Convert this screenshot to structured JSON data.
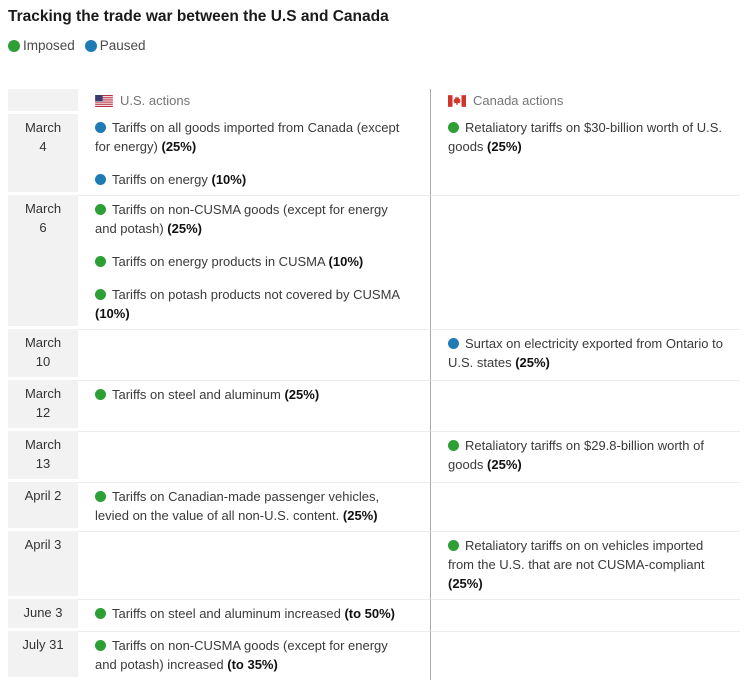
{
  "title": "Tracking the trade war between the U.S and Canada",
  "legend": {
    "items": [
      {
        "label": "Imposed",
        "status": "imposed"
      },
      {
        "label": "Paused",
        "status": "paused"
      }
    ]
  },
  "colors": {
    "imposed": "#2e9e36",
    "paused": "#1f7bb4",
    "us_flag_red": "#b22234",
    "us_flag_blue": "#3c3b6e",
    "canada_flag_red": "#d0342c",
    "date_cell_bg": "#f2f2f2",
    "column_divider": "#a9a9a9",
    "row_separator": "#ececec"
  },
  "chart_data": {
    "type": "table",
    "title": "Tracking the trade war between the U.S and Canada",
    "legend_entries": [
      "Imposed",
      "Paused"
    ],
    "columns": [
      {
        "label": "U.S. actions",
        "icon": "us-flag-icon"
      },
      {
        "label": "Canada actions",
        "icon": "canada-flag-icon"
      }
    ],
    "rows": [
      {
        "date": "March 4",
        "us": [
          {
            "status": "paused",
            "text": "Tariffs on all goods imported from Canada (except for energy)",
            "rate": "(25%)"
          },
          {
            "status": "paused",
            "text": "Tariffs on energy",
            "rate": "(10%)"
          }
        ],
        "canada": [
          {
            "status": "imposed",
            "text": "Retaliatory tariffs on $30-billion worth of U.S. goods",
            "rate": "(25%)"
          }
        ]
      },
      {
        "date": "March 6",
        "us": [
          {
            "status": "imposed",
            "text": "Tariffs on non-CUSMA goods (except for energy and potash)",
            "rate": "(25%)"
          },
          {
            "status": "imposed",
            "text": "Tariffs on energy products in CUSMA",
            "rate": "(10%)"
          },
          {
            "status": "imposed",
            "text": "Tariffs on potash products not covered by CUSMA",
            "rate": "(10%)"
          }
        ],
        "canada": []
      },
      {
        "date": "March 10",
        "us": [],
        "canada": [
          {
            "status": "paused",
            "text": "Surtax on electricity exported from Ontario to U.S. states",
            "rate": "(25%)"
          }
        ]
      },
      {
        "date": "March 12",
        "us": [
          {
            "status": "imposed",
            "text": "Tariffs on steel and aluminum",
            "rate": "(25%)"
          }
        ],
        "canada": []
      },
      {
        "date": "March 13",
        "us": [],
        "canada": [
          {
            "status": "imposed",
            "text": "Retaliatory tariffs on $29.8-billion worth of goods",
            "rate": "(25%)"
          }
        ]
      },
      {
        "date": "April 2",
        "us": [
          {
            "status": "imposed",
            "text": "Tariffs on Canadian-made passenger vehicles, levied on the value of all non-U.S. content.",
            "rate": "(25%)"
          }
        ],
        "canada": []
      },
      {
        "date": "April 3",
        "us": [],
        "canada": [
          {
            "status": "imposed",
            "text": "Retaliatory tariffs on on vehicles imported from the U.S. that are not CUSMA-compliant",
            "rate": "(25%)"
          }
        ]
      },
      {
        "date": "June 3",
        "us": [
          {
            "status": "imposed",
            "text": "Tariffs on steel and aluminum increased",
            "rate": "(to 50%)"
          }
        ],
        "canada": []
      },
      {
        "date": "July 31",
        "us": [
          {
            "status": "imposed",
            "text": "Tariffs on non-CUSMA goods (except for energy and potash) increased",
            "rate": "(to 35%)"
          }
        ],
        "canada": []
      }
    ]
  }
}
